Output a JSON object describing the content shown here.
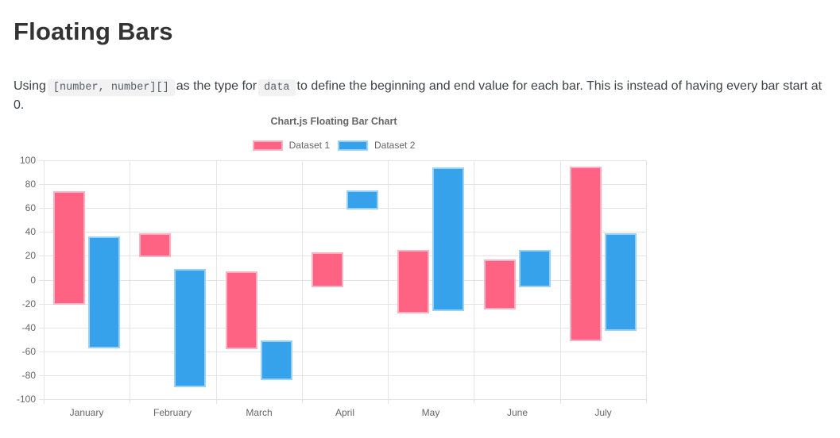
{
  "page": {
    "title": "Floating Bars",
    "description": {
      "part1": "Using",
      "code1": "[number, number][]",
      "part2": "as the type for",
      "code2": "data",
      "part3": "to define the beginning and end value for each bar. This is instead of having every bar start at 0."
    }
  },
  "chart_data": {
    "type": "bar",
    "variant": "floating",
    "title": "Chart.js Floating Bar Chart",
    "categories": [
      "January",
      "February",
      "March",
      "April",
      "May",
      "June",
      "July"
    ],
    "series": [
      {
        "name": "Dataset 1",
        "color": "#FF6384",
        "values": [
          [
            -21,
            74
          ],
          [
            19,
            39
          ],
          [
            -58,
            7
          ],
          [
            -6,
            23
          ],
          [
            -28,
            25
          ],
          [
            -25,
            17
          ],
          [
            -51,
            95
          ]
        ]
      },
      {
        "name": "Dataset 2",
        "color": "#36A2EB",
        "values": [
          [
            -58,
            36
          ],
          [
            -90,
            9
          ],
          [
            -84,
            -51
          ],
          [
            59,
            75
          ],
          [
            -26,
            94
          ],
          [
            -6,
            25
          ],
          [
            -43,
            39
          ]
        ]
      }
    ],
    "ylim": [
      -100,
      100
    ],
    "ytick_step": 20,
    "legend_position": "top",
    "grid": true,
    "text_color": "#666666",
    "grid_color": "#e5e5e5"
  }
}
